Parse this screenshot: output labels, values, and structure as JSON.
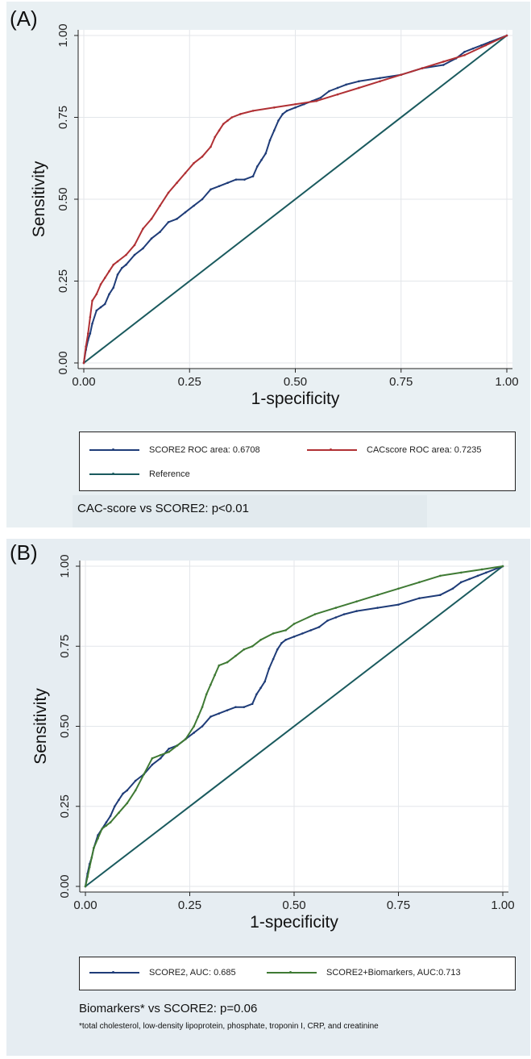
{
  "chart_data": [
    {
      "panel_label": "(A)",
      "type": "line",
      "xlabel": "1-specificity",
      "ylabel": "Sensitivity",
      "xlim": [
        0,
        1
      ],
      "ylim": [
        0,
        1
      ],
      "xticks": [
        "0.00",
        "0.25",
        "0.50",
        "0.75",
        "1.00"
      ],
      "yticks": [
        "0.00",
        "0.25",
        "0.50",
        "0.75",
        "1.00"
      ],
      "grid": true,
      "legend_position": "bottom",
      "series": [
        {
          "name": "SCORE2 ROC area: 0.6708",
          "color": "#1f3c78",
          "x": [
            0,
            0.005,
            0.01,
            0.015,
            0.02,
            0.03,
            0.04,
            0.05,
            0.06,
            0.07,
            0.08,
            0.09,
            0.1,
            0.12,
            0.14,
            0.16,
            0.18,
            0.2,
            0.22,
            0.24,
            0.26,
            0.28,
            0.3,
            0.32,
            0.34,
            0.36,
            0.38,
            0.4,
            0.41,
            0.42,
            0.43,
            0.44,
            0.45,
            0.46,
            0.47,
            0.48,
            0.5,
            0.52,
            0.54,
            0.56,
            0.58,
            0.6,
            0.62,
            0.65,
            0.7,
            0.75,
            0.8,
            0.85,
            0.88,
            0.9,
            0.92,
            0.94,
            0.96,
            1.0
          ],
          "y": [
            0,
            0.04,
            0.07,
            0.09,
            0.12,
            0.16,
            0.17,
            0.18,
            0.21,
            0.23,
            0.27,
            0.29,
            0.3,
            0.33,
            0.35,
            0.38,
            0.4,
            0.43,
            0.44,
            0.46,
            0.48,
            0.5,
            0.53,
            0.54,
            0.55,
            0.56,
            0.56,
            0.57,
            0.6,
            0.62,
            0.64,
            0.68,
            0.71,
            0.74,
            0.76,
            0.77,
            0.78,
            0.79,
            0.8,
            0.81,
            0.83,
            0.84,
            0.85,
            0.86,
            0.87,
            0.88,
            0.9,
            0.91,
            0.93,
            0.95,
            0.96,
            0.97,
            0.98,
            1.0
          ]
        },
        {
          "name": "CACscore ROC area: 0.7235",
          "color": "#b03034",
          "x": [
            0,
            0.005,
            0.01,
            0.015,
            0.02,
            0.03,
            0.04,
            0.05,
            0.06,
            0.07,
            0.08,
            0.1,
            0.12,
            0.14,
            0.16,
            0.18,
            0.2,
            0.22,
            0.24,
            0.26,
            0.28,
            0.3,
            0.31,
            0.32,
            0.33,
            0.34,
            0.35,
            0.37,
            0.4,
            0.45,
            0.5,
            0.55,
            0.6,
            0.65,
            0.7,
            0.75,
            0.8,
            0.85,
            0.9,
            0.95,
            1.0
          ],
          "y": [
            0,
            0.05,
            0.09,
            0.14,
            0.19,
            0.21,
            0.24,
            0.26,
            0.28,
            0.3,
            0.31,
            0.33,
            0.36,
            0.41,
            0.44,
            0.48,
            0.52,
            0.55,
            0.58,
            0.61,
            0.63,
            0.66,
            0.69,
            0.71,
            0.73,
            0.74,
            0.75,
            0.76,
            0.77,
            0.78,
            0.79,
            0.8,
            0.82,
            0.84,
            0.86,
            0.88,
            0.9,
            0.92,
            0.94,
            0.97,
            1.0
          ]
        },
        {
          "name": "Reference",
          "color": "#1a5a5e",
          "x": [
            0,
            1
          ],
          "y": [
            0,
            1
          ]
        }
      ],
      "note": "CAC-score vs SCORE2: p<0.01"
    },
    {
      "panel_label": "(B)",
      "type": "line",
      "xlabel": "1-specificity",
      "ylabel": "Sensitivity",
      "xlim": [
        0,
        1
      ],
      "ylim": [
        0,
        1
      ],
      "xticks": [
        "0.00",
        "0.25",
        "0.50",
        "0.75",
        "1.00"
      ],
      "yticks": [
        "0.00",
        "0.25",
        "0.50",
        "0.75",
        "1.00"
      ],
      "grid": true,
      "legend_position": "bottom",
      "series": [
        {
          "name": "SCORE2, AUC: 0.685",
          "color": "#1f3c78",
          "x": [
            0,
            0.005,
            0.01,
            0.015,
            0.02,
            0.03,
            0.04,
            0.05,
            0.06,
            0.07,
            0.08,
            0.09,
            0.1,
            0.12,
            0.14,
            0.16,
            0.18,
            0.2,
            0.22,
            0.24,
            0.26,
            0.28,
            0.3,
            0.32,
            0.34,
            0.36,
            0.38,
            0.4,
            0.41,
            0.42,
            0.43,
            0.44,
            0.45,
            0.46,
            0.47,
            0.48,
            0.5,
            0.52,
            0.54,
            0.56,
            0.58,
            0.6,
            0.62,
            0.65,
            0.7,
            0.75,
            0.8,
            0.85,
            0.88,
            0.9,
            0.92,
            0.94,
            0.96,
            1.0
          ],
          "y": [
            0,
            0.04,
            0.07,
            0.09,
            0.12,
            0.16,
            0.18,
            0.2,
            0.22,
            0.25,
            0.27,
            0.29,
            0.3,
            0.33,
            0.35,
            0.38,
            0.4,
            0.43,
            0.44,
            0.46,
            0.48,
            0.5,
            0.53,
            0.54,
            0.55,
            0.56,
            0.56,
            0.57,
            0.6,
            0.62,
            0.64,
            0.68,
            0.71,
            0.74,
            0.76,
            0.77,
            0.78,
            0.79,
            0.8,
            0.81,
            0.83,
            0.84,
            0.85,
            0.86,
            0.87,
            0.88,
            0.9,
            0.91,
            0.93,
            0.95,
            0.96,
            0.97,
            0.98,
            1.0
          ]
        },
        {
          "name": "SCORE2+Biomarkers, AUC:0.713",
          "color": "#3f7a34",
          "x": [
            0,
            0.005,
            0.01,
            0.015,
            0.02,
            0.03,
            0.04,
            0.05,
            0.06,
            0.08,
            0.1,
            0.12,
            0.14,
            0.16,
            0.18,
            0.2,
            0.22,
            0.24,
            0.26,
            0.27,
            0.28,
            0.29,
            0.3,
            0.31,
            0.32,
            0.34,
            0.36,
            0.38,
            0.4,
            0.42,
            0.45,
            0.48,
            0.5,
            0.55,
            0.6,
            0.65,
            0.7,
            0.75,
            0.8,
            0.85,
            0.9,
            0.95,
            1.0
          ],
          "y": [
            0,
            0.03,
            0.06,
            0.09,
            0.12,
            0.15,
            0.18,
            0.19,
            0.2,
            0.23,
            0.26,
            0.3,
            0.35,
            0.4,
            0.41,
            0.42,
            0.44,
            0.46,
            0.5,
            0.53,
            0.56,
            0.6,
            0.63,
            0.66,
            0.69,
            0.7,
            0.72,
            0.74,
            0.75,
            0.77,
            0.79,
            0.8,
            0.82,
            0.85,
            0.87,
            0.89,
            0.91,
            0.93,
            0.95,
            0.97,
            0.98,
            0.99,
            1.0
          ]
        },
        {
          "name": "",
          "color": "#1a5a5e",
          "x": [
            0,
            1
          ],
          "y": [
            0,
            1
          ]
        }
      ],
      "note": "Biomarkers* vs SCORE2: p=0.06",
      "footnote": "*total cholesterol, low-density lipoprotein, phosphate, troponin I, CRP, and creatinine"
    }
  ]
}
